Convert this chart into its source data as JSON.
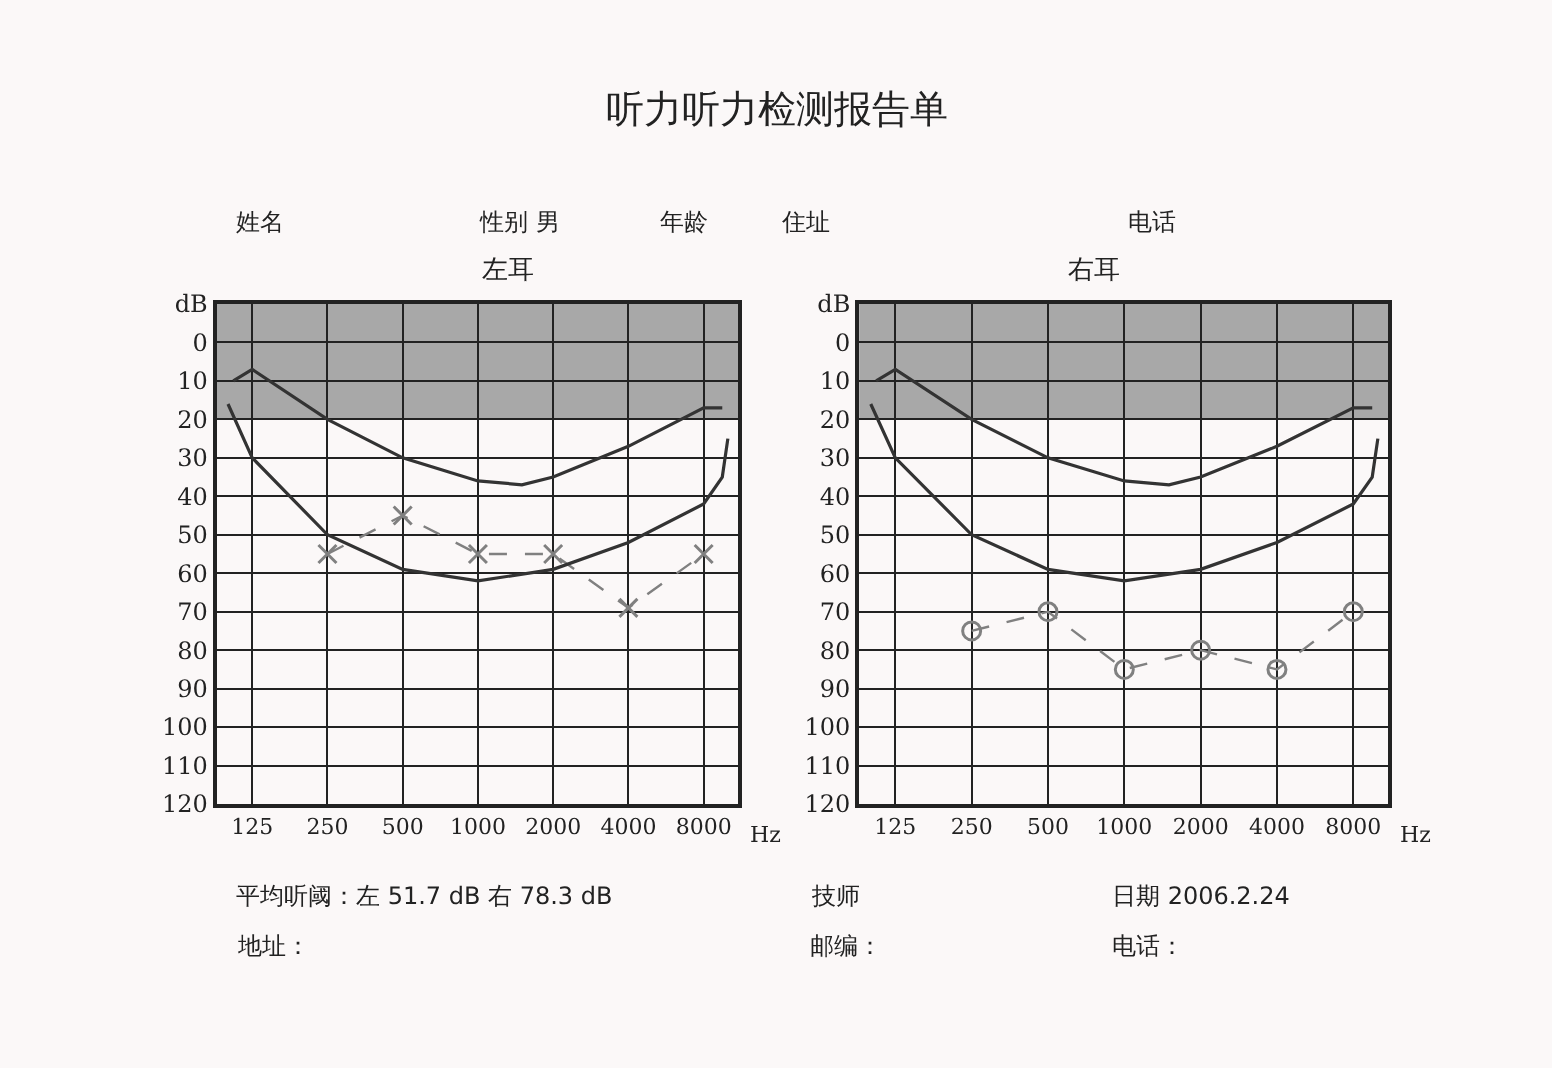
{
  "chart_data": [
    {
      "type": "other",
      "title": "听力听力检测报告单",
      "annotations": [
        "姓名",
        "性别 男",
        "年龄",
        "住址",
        "电话",
        "平均听阈：左 51.7 dB 右 78.3 dB",
        "技师",
        "日期 2006.2.24",
        "地址：",
        "邮编：",
        "电话："
      ]
    },
    {
      "type": "line",
      "title": "左耳",
      "xlabel": "Hz",
      "log": "x",
      "grid": true,
      "line_style": "dashed",
      "marker": "cross",
      "xlim": [
        90,
        11000
      ],
      "xticks": [
        125,
        250,
        500,
        1000,
        2000,
        4000,
        8000
      ],
      "ylim": [
        120,
        -10
      ],
      "yticks": [
        {
          "value": -10,
          "label": "dB"
        },
        0,
        10,
        20,
        30,
        40,
        50,
        60,
        70,
        80,
        90,
        100,
        110,
        120
      ],
      "bands": [
        {
          "axis": "y",
          "from": -10,
          "to": 20,
          "color": "#a8a8a8"
        }
      ],
      "series": [
        {
          "color": "#808080",
          "x": [
            250,
            500,
            1000,
            2000,
            4000,
            8000
          ],
          "values": [
            55,
            45,
            55,
            55,
            69,
            55
          ]
        },
        {
          "type": "line",
          "color": "#333333",
          "marker": "none",
          "line_style": "solid",
          "x": [
            105,
            125,
            250,
            500,
            1000,
            1500,
            2000,
            4000,
            8000,
            9500
          ],
          "values": [
            10,
            7,
            20,
            30,
            36,
            37,
            35,
            27,
            17,
            17
          ]
        },
        {
          "type": "line",
          "color": "#333333",
          "marker": "none",
          "line_style": "solid",
          "x": [
            100,
            125,
            250,
            500,
            1000,
            2000,
            4000,
            8000,
            9500,
            10000
          ],
          "values": [
            16,
            30,
            50,
            59,
            62,
            59,
            52,
            42,
            35,
            25
          ]
        }
      ]
    },
    {
      "type": "line",
      "title": "右耳",
      "xlabel": "Hz",
      "log": "x",
      "grid": true,
      "line_style": "dashed",
      "marker": "circle",
      "xlim": [
        90,
        11000
      ],
      "xticks": [
        125,
        250,
        500,
        1000,
        2000,
        4000,
        8000
      ],
      "ylim": [
        120,
        -10
      ],
      "yticks": [
        {
          "value": -10,
          "label": "dB"
        },
        0,
        10,
        20,
        30,
        40,
        50,
        60,
        70,
        80,
        90,
        100,
        110,
        120
      ],
      "bands": [
        {
          "axis": "y",
          "from": -10,
          "to": 20,
          "color": "#a8a8a8"
        }
      ],
      "series": [
        {
          "color": "#808080",
          "x": [
            250,
            500,
            1000,
            2000,
            4000,
            8000
          ],
          "values": [
            75,
            70,
            85,
            80,
            85,
            70
          ]
        },
        {
          "type": "line",
          "color": "#333333",
          "marker": "none",
          "line_style": "solid",
          "x": [
            105,
            125,
            250,
            500,
            1000,
            1500,
            2000,
            4000,
            8000,
            9500
          ],
          "values": [
            10,
            7,
            20,
            30,
            36,
            37,
            35,
            27,
            17,
            17
          ]
        },
        {
          "type": "line",
          "color": "#333333",
          "marker": "none",
          "line_style": "solid",
          "x": [
            100,
            125,
            250,
            500,
            1000,
            2000,
            4000,
            8000,
            9500,
            10000
          ],
          "values": [
            16,
            30,
            50,
            59,
            62,
            59,
            52,
            42,
            35,
            25
          ]
        }
      ]
    }
  ]
}
